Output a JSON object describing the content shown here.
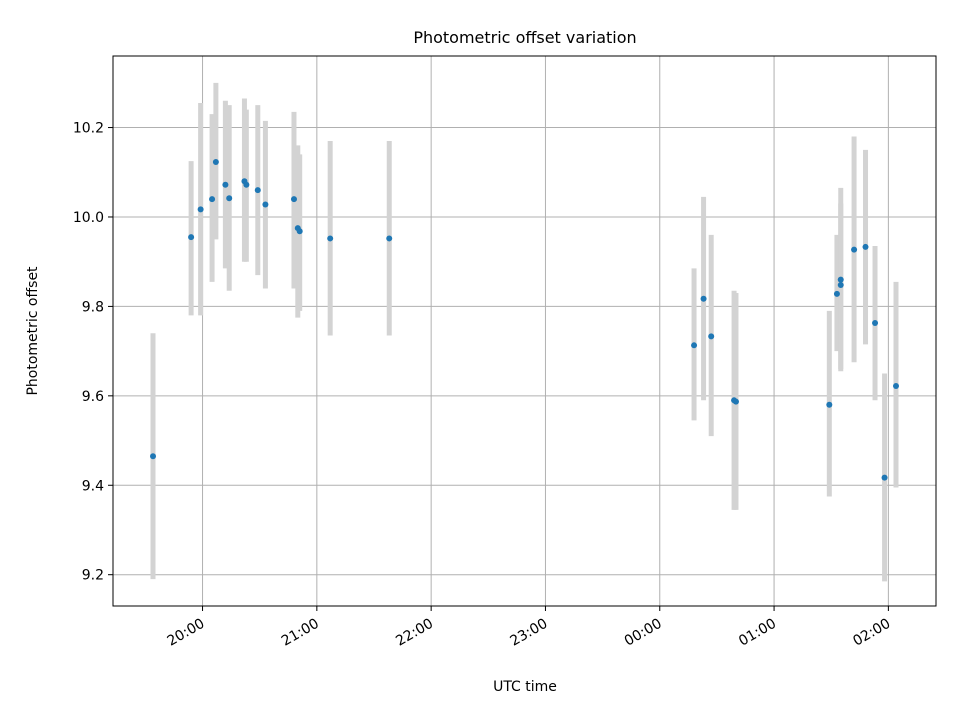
{
  "chart_data": {
    "type": "scatter",
    "title": "Photometric offset variation",
    "xlabel": "UTC time",
    "ylabel": "Photometric offset",
    "x_unit": "time of day (UTC), wrapping past midnight",
    "xlim": [
      "19:13",
      "02:25"
    ],
    "ylim": [
      9.13,
      10.36
    ],
    "xticks": [
      "20:00",
      "21:00",
      "22:00",
      "23:00",
      "00:00",
      "01:00",
      "02:00"
    ],
    "yticks": [
      "9.2",
      "9.4",
      "9.6",
      "9.8",
      "10.0",
      "10.2"
    ],
    "grid": true,
    "marker_color": "#1f77b4",
    "errorbar_color": "#d3d3d3",
    "points": [
      {
        "t": "19:34",
        "y": 9.465,
        "lo": 9.19,
        "hi": 9.74
      },
      {
        "t": "19:54",
        "y": 9.955,
        "lo": 9.78,
        "hi": 10.125
      },
      {
        "t": "19:59",
        "y": 10.017,
        "lo": 9.78,
        "hi": 10.255
      },
      {
        "t": "20:05",
        "y": 10.04,
        "lo": 9.855,
        "hi": 10.23
      },
      {
        "t": "20:07",
        "y": 10.123,
        "lo": 9.95,
        "hi": 10.3
      },
      {
        "t": "20:12",
        "y": 10.072,
        "lo": 9.885,
        "hi": 10.26
      },
      {
        "t": "20:14",
        "y": 10.042,
        "lo": 9.835,
        "hi": 10.25
      },
      {
        "t": "20:22",
        "y": 10.08,
        "lo": 9.9,
        "hi": 10.265
      },
      {
        "t": "20:23",
        "y": 10.072,
        "lo": 9.9,
        "hi": 10.24
      },
      {
        "t": "20:29",
        "y": 10.06,
        "lo": 9.87,
        "hi": 10.25
      },
      {
        "t": "20:33",
        "y": 10.028,
        "lo": 9.84,
        "hi": 10.215
      },
      {
        "t": "20:48",
        "y": 10.04,
        "lo": 9.84,
        "hi": 10.235
      },
      {
        "t": "20:50",
        "y": 9.975,
        "lo": 9.775,
        "hi": 10.16
      },
      {
        "t": "20:51",
        "y": 9.968,
        "lo": 9.79,
        "hi": 10.14
      },
      {
        "t": "21:07",
        "y": 9.952,
        "lo": 9.735,
        "hi": 10.17
      },
      {
        "t": "21:38",
        "y": 9.952,
        "lo": 9.735,
        "hi": 10.17
      },
      {
        "t": "00:18",
        "y": 9.713,
        "lo": 9.545,
        "hi": 9.885
      },
      {
        "t": "00:23",
        "y": 9.817,
        "lo": 9.59,
        "hi": 10.045
      },
      {
        "t": "00:27",
        "y": 9.733,
        "lo": 9.51,
        "hi": 9.96
      },
      {
        "t": "00:39",
        "y": 9.59,
        "lo": 9.345,
        "hi": 9.835
      },
      {
        "t": "00:40",
        "y": 9.587,
        "lo": 9.345,
        "hi": 9.83
      },
      {
        "t": "01:29",
        "y": 9.58,
        "lo": 9.375,
        "hi": 9.79
      },
      {
        "t": "01:33",
        "y": 9.828,
        "lo": 9.7,
        "hi": 9.96
      },
      {
        "t": "01:35",
        "y": 9.848,
        "lo": 9.66,
        "hi": 10.03
      },
      {
        "t": "01:35",
        "y": 9.86,
        "lo": 9.655,
        "hi": 10.065
      },
      {
        "t": "01:42",
        "y": 9.927,
        "lo": 9.675,
        "hi": 10.18
      },
      {
        "t": "01:48",
        "y": 9.933,
        "lo": 9.715,
        "hi": 10.15
      },
      {
        "t": "01:53",
        "y": 9.763,
        "lo": 9.59,
        "hi": 9.935
      },
      {
        "t": "01:58",
        "y": 9.417,
        "lo": 9.185,
        "hi": 9.65
      },
      {
        "t": "02:04",
        "y": 9.622,
        "lo": 9.395,
        "hi": 9.855
      }
    ]
  }
}
